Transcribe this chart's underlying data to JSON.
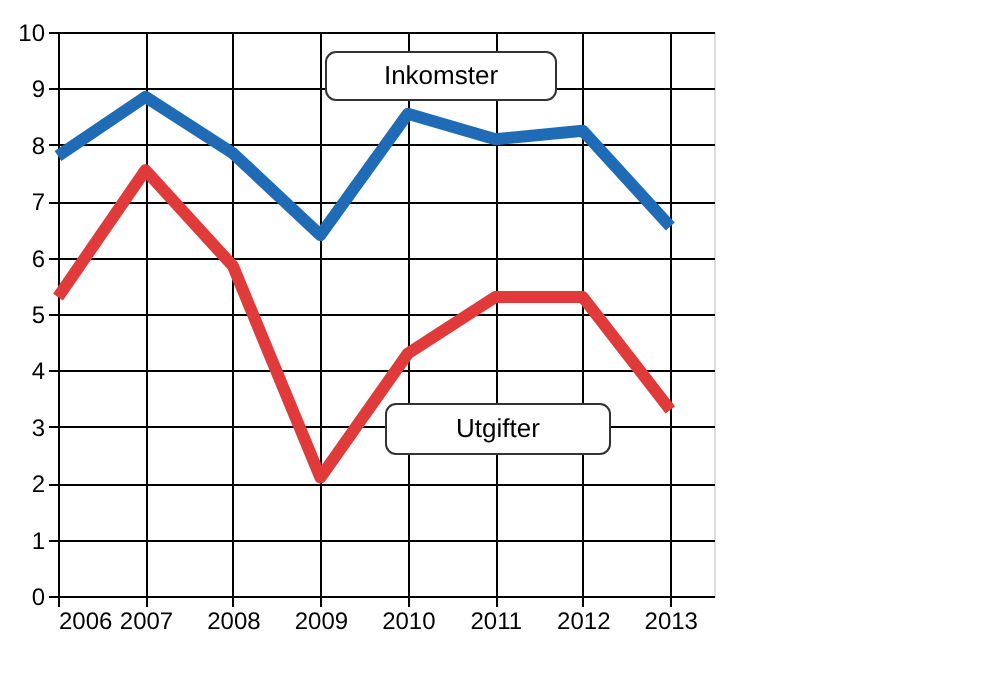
{
  "chart_data": {
    "type": "line",
    "x": [
      2006,
      2007,
      2008,
      2009,
      2010,
      2011,
      2012,
      2013
    ],
    "series": [
      {
        "name": "Inkomster",
        "color": "#1f6bb5",
        "values": [
          7.8,
          8.85,
          7.85,
          6.4,
          8.55,
          8.1,
          8.25,
          6.55
        ]
      },
      {
        "name": "Utgifter",
        "color": "#e03a3a",
        "values": [
          5.3,
          7.55,
          5.85,
          2.1,
          4.3,
          5.3,
          5.3,
          3.3
        ]
      }
    ],
    "xlim": [
      2006,
      2013.5
    ],
    "xticks": [
      2006,
      2007,
      2008,
      2009,
      2010,
      2011,
      2012,
      2013
    ],
    "ylim": [
      0,
      10
    ],
    "yticks": [
      0,
      1,
      2,
      3,
      4,
      5,
      6,
      7,
      8,
      9,
      10
    ],
    "grid": true,
    "marker": "none",
    "line_style": "solid"
  }
}
